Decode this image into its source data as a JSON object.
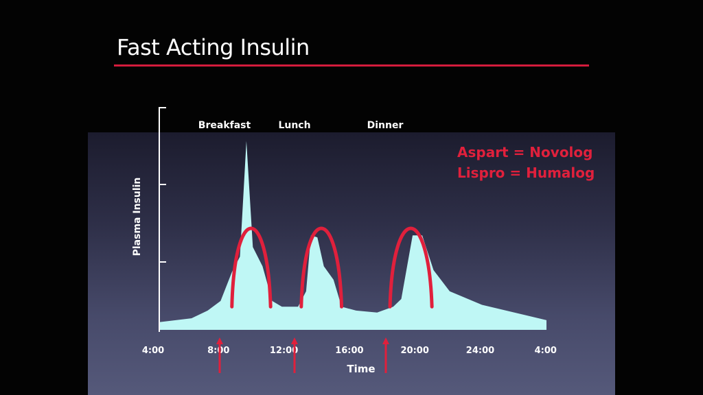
{
  "slide": {
    "title": "Fast Acting Insulin",
    "colors": {
      "accent": "#d41c3c",
      "fill": "#bff7f5",
      "curve": "#e0203c",
      "text": "#ffffff"
    }
  },
  "chart_data": {
    "type": "area",
    "title": "Fast Acting Insulin",
    "xlabel": "Time",
    "ylabel": "Plasma Insulin",
    "x_ticks": [
      "4:00",
      "8:00",
      "12:00",
      "16:00",
      "20:00",
      "24:00",
      "4:00"
    ],
    "xlim": [
      4,
      28
    ],
    "ylim": [
      0,
      1
    ],
    "grid": false,
    "meals": [
      {
        "label": "Breakfast",
        "time": 8
      },
      {
        "label": "Lunch",
        "time": 12.7
      },
      {
        "label": "Dinner",
        "time": 18
      }
    ],
    "series": [
      {
        "points": [
          [
            4,
            0.04
          ],
          [
            6,
            0.06
          ],
          [
            7,
            0.1
          ],
          [
            7.8,
            0.15
          ],
          [
            8.5,
            0.3
          ],
          [
            9,
            0.38
          ],
          [
            9.4,
            0.98
          ],
          [
            9.8,
            0.43
          ],
          [
            10.4,
            0.33
          ],
          [
            11,
            0.15
          ],
          [
            11.6,
            0.12
          ],
          [
            12.6,
            0.12
          ],
          [
            13.1,
            0.2
          ],
          [
            13.4,
            0.49
          ],
          [
            13.8,
            0.48
          ],
          [
            14.2,
            0.33
          ],
          [
            14.8,
            0.26
          ],
          [
            15.3,
            0.12
          ],
          [
            16.2,
            0.1
          ],
          [
            17.5,
            0.09
          ],
          [
            18.5,
            0.12
          ],
          [
            19,
            0.16
          ],
          [
            19.7,
            0.49
          ],
          [
            20.3,
            0.49
          ],
          [
            21,
            0.31
          ],
          [
            22,
            0.2
          ],
          [
            24,
            0.13
          ],
          [
            28,
            0.05
          ]
        ]
      },
      {
        "peaks": [
          {
            "start": 8.5,
            "peak": 9.6,
            "end": 10.9,
            "height": 0.47
          },
          {
            "start": 12.8,
            "peak": 14.0,
            "end": 15.3,
            "height": 0.47
          },
          {
            "start": 18.3,
            "peak": 19.5,
            "end": 20.9,
            "height": 0.47
          }
        ]
      }
    ],
    "annotations": [
      "Aspart = Novolog",
      "Lispro = Humalog"
    ]
  }
}
